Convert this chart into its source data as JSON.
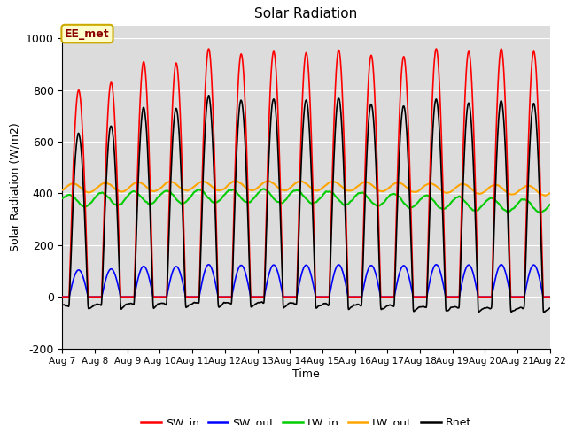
{
  "title": "Solar Radiation",
  "ylabel": "Solar Radiation (W/m2)",
  "xlabel": "Time",
  "ylim": [
    -200,
    1050
  ],
  "yticks": [
    -200,
    0,
    200,
    400,
    600,
    800,
    1000
  ],
  "xtick_labels": [
    "Aug 7",
    "Aug 8",
    "Aug 9",
    "Aug 10",
    "Aug 11",
    "Aug 12",
    "Aug 13",
    "Aug 14",
    "Aug 15",
    "Aug 16",
    "Aug 17",
    "Aug 18",
    "Aug 19",
    "Aug 20",
    "Aug 21",
    "Aug 22"
  ],
  "colors": {
    "SW_in": "#ff0000",
    "SW_out": "#0000ff",
    "LW_in": "#00cc00",
    "LW_out": "#ffa500",
    "Rnet": "#000000"
  },
  "annotation_text": "EE_met",
  "annotation_color": "#8B0000",
  "annotation_bg": "#ffffcc",
  "bg_color": "#dcdcdc",
  "day_amplitudes_SW": [
    800,
    830,
    910,
    905,
    960,
    940,
    950,
    945,
    955,
    935,
    930,
    960,
    950,
    960,
    950
  ],
  "n_days": 15,
  "pts_per_day": 144
}
